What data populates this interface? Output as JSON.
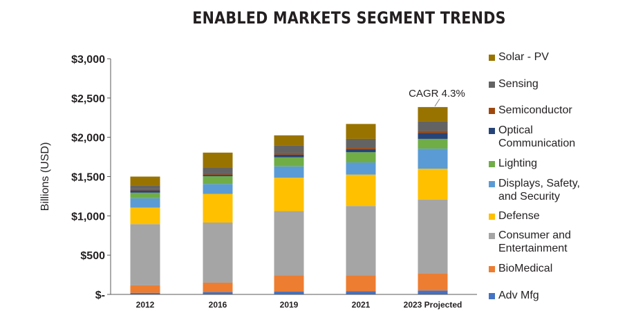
{
  "chart_data": {
    "type": "bar",
    "stacked": true,
    "title": "ENABLED MARKETS SEGMENT TRENDS",
    "ylabel": "Billions (USD)",
    "xlabel": "",
    "ylim": [
      0,
      3000
    ],
    "yticks": [
      0,
      500,
      1000,
      1500,
      2000,
      2500,
      3000
    ],
    "ytick_labels": [
      "$-",
      "$500",
      "$1,000",
      "$1,500",
      "$2,000",
      "$2,500",
      "$3,000"
    ],
    "categories": [
      "2012",
      "2016",
      "2019",
      "2021",
      "2023 Projected"
    ],
    "grid": false,
    "legend_position": "right",
    "series": [
      {
        "name": "Adv Mfg",
        "color": "#4472c4",
        "values": [
          20,
          30,
          35,
          40,
          50
        ]
      },
      {
        "name": "BioMedical",
        "color": "#ed7d31",
        "values": [
          95,
          120,
          210,
          205,
          220
        ]
      },
      {
        "name": "Consumer and Entertainment",
        "color": "#a5a5a5",
        "values": [
          780,
          765,
          815,
          880,
          935
        ]
      },
      {
        "name": "Defense",
        "color": "#ffc000",
        "values": [
          210,
          365,
          425,
          400,
          395
        ]
      },
      {
        "name": "Displays, Safety, and Security",
        "color": "#5b9bd5",
        "values": [
          120,
          125,
          145,
          155,
          255
        ]
      },
      {
        "name": "Lighting",
        "color": "#70ad47",
        "values": [
          70,
          100,
          115,
          130,
          125
        ]
      },
      {
        "name": "Optical Communication",
        "color": "#264478",
        "values": [
          30,
          20,
          35,
          40,
          75
        ]
      },
      {
        "name": "Semiconductor",
        "color": "#9e480e",
        "values": [
          15,
          15,
          20,
          20,
          25
        ]
      },
      {
        "name": "Sensing",
        "color": "#636363",
        "values": [
          45,
          70,
          95,
          110,
          120
        ]
      },
      {
        "name": "Solar - PV",
        "color": "#997300",
        "values": [
          115,
          195,
          130,
          190,
          185
        ]
      }
    ],
    "annotation": {
      "text": "CAGR 4.3%",
      "category": "2023 Projected"
    }
  },
  "legend": {
    "items": [
      {
        "label": "Solar - PV",
        "color": "#997300"
      },
      {
        "label": "Sensing",
        "color": "#636363"
      },
      {
        "label": "Semiconductor",
        "color": "#9e480e"
      },
      {
        "label": "Optical\nCommunication",
        "color": "#264478"
      },
      {
        "label": "Lighting",
        "color": "#70ad47"
      },
      {
        "label": "Displays, Safety,\nand Security",
        "color": "#5b9bd5"
      },
      {
        "label": "Defense",
        "color": "#ffc000"
      },
      {
        "label": "Consumer and\nEntertainment",
        "color": "#a5a5a5"
      },
      {
        "label": "BioMedical",
        "color": "#ed7d31"
      },
      {
        "label": "Adv Mfg",
        "color": "#4472c4"
      }
    ]
  }
}
